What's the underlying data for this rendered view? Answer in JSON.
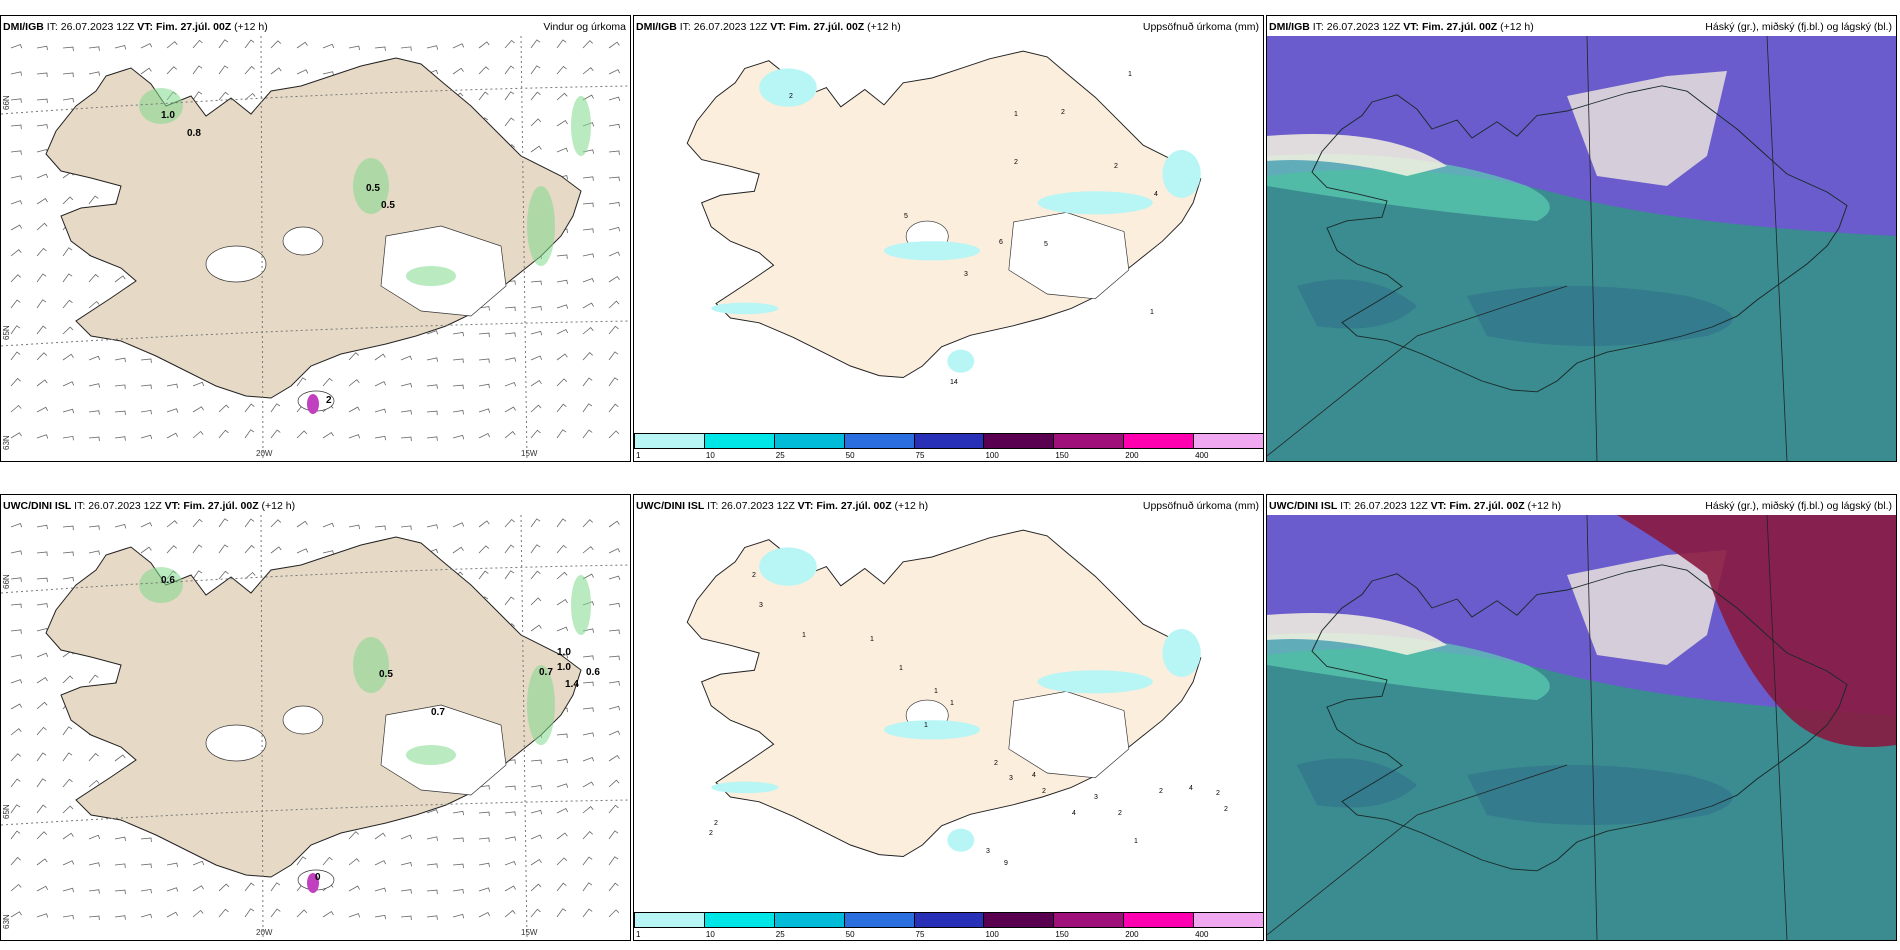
{
  "panels": [
    {
      "model": "DMI/IGB",
      "it_label": "IT:",
      "it_value": "26.07.2023 12Z",
      "vt_label": "VT:",
      "vt_value": "Fim. 27.júl. 00Z",
      "lead": "(+12 h)",
      "title": "Vindur og úrkoma",
      "type": "wind",
      "lat_labels": [
        "66N",
        "65N",
        "63N"
      ],
      "lon_labels": [
        "20W",
        "15W"
      ],
      "values": [
        "1.0",
        "0.8",
        "0.5",
        "0.5",
        "2"
      ]
    },
    {
      "model": "DMI/IGB",
      "it_label": "IT:",
      "it_value": "26.07.2023 12Z",
      "vt_label": "VT:",
      "vt_value": "Fim. 27.júl. 00Z",
      "lead": "(+12 h)",
      "title": "Uppsöfnuð úrkoma (mm)",
      "type": "precip",
      "values": [
        "2",
        "1",
        "1",
        "2",
        "2",
        "2",
        "4",
        "5",
        "6",
        "5",
        "3",
        "1",
        "14"
      ]
    },
    {
      "model": "DMI/IGB",
      "it_label": "IT:",
      "it_value": "26.07.2023 12Z",
      "vt_label": "VT:",
      "vt_value": "Fim. 27.júl. 00Z",
      "lead": "(+12 h)",
      "title": "Háský (gr.), miðský (fj.bl.) og lágský (bl.)",
      "type": "cloud"
    },
    {
      "model": "UWC/DINI ISL",
      "it_label": "IT:",
      "it_value": "26.07.2023 12Z",
      "vt_label": "VT:",
      "vt_value": "Fim. 27.júl. 00Z",
      "lead": "(+12 h)",
      "title": "",
      "type": "wind",
      "lat_labels": [
        "66N",
        "65N",
        "63N"
      ],
      "lon_labels": [
        "20W",
        "15W"
      ],
      "values": [
        "0.6",
        "0.5",
        "0.7",
        "1.0",
        "1.0",
        "0.7",
        "0.6",
        "1.4",
        "0"
      ]
    },
    {
      "model": "UWC/DINI ISL",
      "it_label": "IT:",
      "it_value": "26.07.2023 12Z",
      "vt_label": "VT:",
      "vt_value": "Fim. 27.júl. 00Z",
      "lead": "(+12 h)",
      "title": "Uppsöfnuð úrkoma (mm)",
      "type": "precip",
      "values": [
        "2",
        "3",
        "1",
        "1",
        "1",
        "1",
        "1",
        "1",
        "2",
        "3",
        "4",
        "2",
        "4",
        "3",
        "2",
        "1",
        "2",
        "4",
        "2",
        "2",
        "3",
        "9",
        "2",
        "2"
      ]
    },
    {
      "model": "UWC/DINI ISL",
      "it_label": "IT:",
      "it_value": "26.07.2023 12Z",
      "vt_label": "VT:",
      "vt_value": "Fim. 27.júl. 00Z",
      "lead": "(+12 h)",
      "title": "Háský (gr.), miðský (fj.bl.) og lágský (bl.)",
      "type": "cloud"
    }
  ],
  "colorbar": {
    "ticks": [
      "1",
      "10",
      "25",
      "50",
      "75",
      "100",
      "150",
      "200",
      "400"
    ],
    "colors": [
      "#b8f5f5",
      "#00e5e5",
      "#00bcd8",
      "#2a6ee0",
      "#2830b8",
      "#5a0050",
      "#a0107a",
      "#ff00b0",
      "#f0a8f0"
    ]
  },
  "colors": {
    "land": "#e6d9c6",
    "land_precip": "#fbeedd",
    "cloud_high": "#6a5ccc",
    "cloud_low": "#3a8c90"
  }
}
